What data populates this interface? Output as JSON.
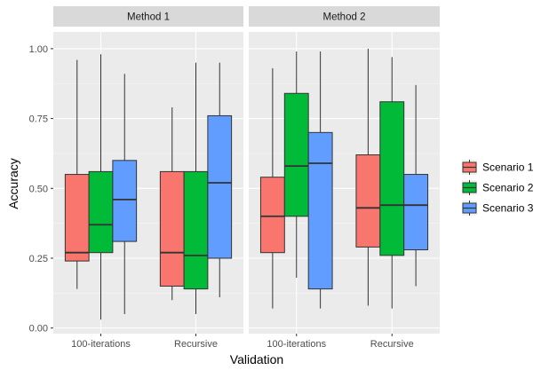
{
  "chart_data": {
    "type": "boxplot",
    "title": "",
    "xlabel": "Validation",
    "ylabel": "Accuracy",
    "ylim": [
      -0.02,
      1.06
    ],
    "yticks": [
      0.0,
      0.25,
      0.5,
      0.75,
      1.0
    ],
    "ytick_labels": [
      "0.00",
      "0.25",
      "0.50",
      "0.75",
      "1.00"
    ],
    "categories": [
      "100-iterations",
      "Recursive"
    ],
    "legend_position": "right",
    "grid": true,
    "series": [
      {
        "name": "Scenario 1",
        "color": "#F8766D"
      },
      {
        "name": "Scenario 2",
        "color": "#00BA38"
      },
      {
        "name": "Scenario 3",
        "color": "#619CFF"
      }
    ],
    "panels": [
      {
        "label": "Method 1",
        "groups": [
          {
            "category": "100-iterations",
            "boxes": [
              {
                "series": "Scenario 1",
                "min": 0.14,
                "q1": 0.24,
                "median": 0.27,
                "q3": 0.55,
                "max": 0.96
              },
              {
                "series": "Scenario 2",
                "min": 0.03,
                "q1": 0.27,
                "median": 0.37,
                "q3": 0.56,
                "max": 0.98
              },
              {
                "series": "Scenario 3",
                "min": 0.05,
                "q1": 0.31,
                "median": 0.46,
                "q3": 0.6,
                "max": 0.91
              }
            ]
          },
          {
            "category": "Recursive",
            "boxes": [
              {
                "series": "Scenario 1",
                "min": 0.1,
                "q1": 0.15,
                "median": 0.27,
                "q3": 0.56,
                "max": 0.79
              },
              {
                "series": "Scenario 2",
                "min": 0.05,
                "q1": 0.14,
                "median": 0.26,
                "q3": 0.56,
                "max": 0.95
              },
              {
                "series": "Scenario 3",
                "min": 0.11,
                "q1": 0.25,
                "median": 0.52,
                "q3": 0.76,
                "max": 0.95
              }
            ]
          }
        ]
      },
      {
        "label": "Method 2",
        "groups": [
          {
            "category": "100-iterations",
            "boxes": [
              {
                "series": "Scenario 1",
                "min": 0.07,
                "q1": 0.27,
                "median": 0.4,
                "q3": 0.54,
                "max": 0.93
              },
              {
                "series": "Scenario 2",
                "min": 0.18,
                "q1": 0.4,
                "median": 0.58,
                "q3": 0.84,
                "max": 0.99
              },
              {
                "series": "Scenario 3",
                "min": 0.07,
                "q1": 0.14,
                "median": 0.59,
                "q3": 0.7,
                "max": 0.99
              }
            ]
          },
          {
            "category": "Recursive",
            "boxes": [
              {
                "series": "Scenario 1",
                "min": 0.08,
                "q1": 0.29,
                "median": 0.43,
                "q3": 0.62,
                "max": 1.0
              },
              {
                "series": "Scenario 2",
                "min": 0.07,
                "q1": 0.26,
                "median": 0.44,
                "q3": 0.81,
                "max": 0.97
              },
              {
                "series": "Scenario 3",
                "min": 0.15,
                "q1": 0.28,
                "median": 0.44,
                "q3": 0.55,
                "max": 0.87
              }
            ]
          }
        ]
      }
    ]
  }
}
